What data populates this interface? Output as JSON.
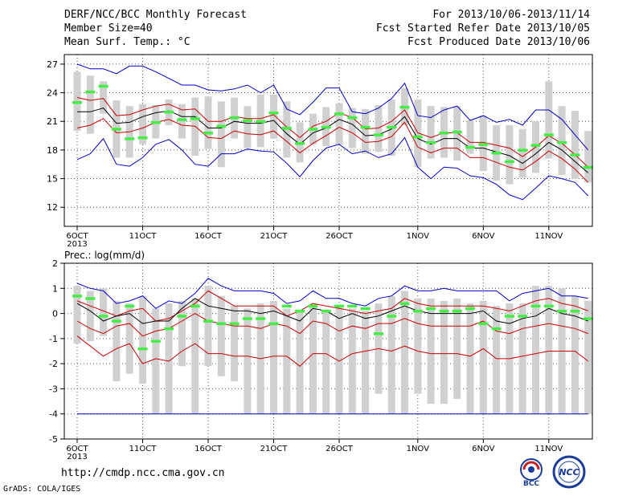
{
  "header": {
    "title": "DERF/NCC/BCC Monthly Forecast",
    "member_size": "Member Size=40",
    "variable": "Mean Surf. Temp.: °C",
    "forecast_period": "For 2013/10/06-2013/11/14",
    "fcst_started": "Fcst Started Refer Date 2013/10/05",
    "fcst_produced": "Fcst Produced Date 2013/10/06"
  },
  "footer": {
    "url": "http://cmdp.ncc.cma.gov.cn",
    "grads_credit": "GrADS: COLA/IGES",
    "logo_bcc": "BCC",
    "logo_ncc": "NCC"
  },
  "colors": {
    "ensemble_max_min": "#0000cc",
    "spread_band": "#cc0000",
    "mean": "#000000",
    "climatology": "#44ee44",
    "box": "#d0d0d0"
  },
  "chart_data": [
    {
      "type": "line",
      "title": "",
      "ylabel": "",
      "ylim": [
        10,
        28
      ],
      "yticks": [
        12,
        15,
        18,
        21,
        24,
        27
      ],
      "x_tick_labels": [
        "6OCT",
        "11OCT",
        "16OCT",
        "21OCT",
        "26OCT",
        "1NOV",
        "6NOV",
        "11NOV"
      ],
      "x_tick_days": [
        1,
        6,
        11,
        16,
        21,
        27,
        32,
        37
      ],
      "year_label": "2013",
      "grid": true,
      "days": [
        1,
        2,
        3,
        4,
        5,
        6,
        7,
        8,
        9,
        10,
        11,
        12,
        13,
        14,
        15,
        16,
        17,
        18,
        19,
        20,
        21,
        22,
        23,
        24,
        25,
        26,
        27,
        28,
        29,
        30,
        31,
        32,
        33,
        34,
        35,
        36,
        37,
        38,
        39,
        40
      ],
      "series": [
        {
          "id": "max",
          "color": "#0000cc",
          "values": [
            27,
            26.5,
            26.5,
            26,
            26.8,
            26.8,
            26.2,
            25.5,
            24.8,
            24.8,
            24.3,
            24.2,
            24.4,
            24.8,
            24,
            24.8,
            22.3,
            21.7,
            23,
            24.5,
            24.5,
            22,
            21.8,
            22.4,
            23.4,
            25,
            21.6,
            21.4,
            22.2,
            22.6,
            21.1,
            21.6,
            20.9,
            21.2,
            20.6,
            22.2,
            22.2,
            21.2,
            19.6,
            18
          ]
        },
        {
          "id": "upper",
          "color": "#cc0000",
          "values": [
            23.5,
            23.2,
            23.4,
            21.6,
            21.7,
            22.2,
            22.6,
            22.8,
            22.2,
            22.3,
            21,
            21,
            21.5,
            21.3,
            21.3,
            21.7,
            20.4,
            19.3,
            20.5,
            21,
            21.9,
            21.4,
            20.2,
            20.3,
            21,
            22.2,
            19.8,
            19.3,
            19.8,
            19.8,
            18.8,
            18.8,
            18.5,
            18.2,
            17.3,
            18.3,
            19.5,
            18.7,
            17.5,
            16.2
          ]
        },
        {
          "id": "mean",
          "color": "#000000",
          "values": [
            22,
            22,
            22.4,
            20.8,
            20.9,
            21.5,
            21.9,
            22.1,
            21.5,
            21.5,
            20.3,
            20.3,
            21,
            20.8,
            20.8,
            21.1,
            19.7,
            18.6,
            19.8,
            20.3,
            21.2,
            20.7,
            19.5,
            19.6,
            20.2,
            21.5,
            19.2,
            18.6,
            19.2,
            19.2,
            18.2,
            18.2,
            17.8,
            17.4,
            16.6,
            17.6,
            18.8,
            18,
            16.8,
            15.6
          ]
        },
        {
          "id": "lower",
          "color": "#cc0000",
          "values": [
            20.3,
            20.6,
            21.3,
            19.8,
            19.9,
            20.3,
            20.9,
            21.2,
            20.6,
            20.5,
            19.3,
            19.2,
            20,
            19.7,
            19.6,
            20,
            18.9,
            17.7,
            18.7,
            19.5,
            20.4,
            19.8,
            18.8,
            18.9,
            19.4,
            20.9,
            18.3,
            17.7,
            18.2,
            18.2,
            17.2,
            17.2,
            16.7,
            16.2,
            15.9,
            16.8,
            17.9,
            17.1,
            16,
            14.6
          ]
        },
        {
          "id": "min",
          "color": "#0000cc",
          "values": [
            17,
            17.6,
            19.2,
            16.5,
            16.3,
            17.2,
            18.6,
            19.1,
            18,
            16.5,
            16.3,
            17.6,
            17.6,
            18.1,
            17.9,
            17.8,
            16.6,
            15.2,
            16.9,
            18.2,
            18.6,
            17.6,
            17.9,
            17.2,
            17.6,
            19.3,
            16.2,
            15,
            16.2,
            16.1,
            15.3,
            15.1,
            14.4,
            13.3,
            12.8,
            14,
            15.3,
            15,
            14.6,
            13.2
          ]
        }
      ],
      "boxes": [
        [
          20,
          26.2
        ],
        [
          19.7,
          25.8
        ],
        [
          21.8,
          25.2
        ],
        [
          17.2,
          23.2
        ],
        [
          17.2,
          22.6
        ],
        [
          18.6,
          22.8
        ],
        [
          19.2,
          22.7
        ],
        [
          20.6,
          23.3
        ],
        [
          19.2,
          22.8
        ],
        [
          17.4,
          23.5
        ],
        [
          18.1,
          23.6
        ],
        [
          16.2,
          23.1
        ],
        [
          19.2,
          23.5
        ],
        [
          18.2,
          22.6
        ],
        [
          18.3,
          23.8
        ],
        [
          19.2,
          23.8
        ],
        [
          17.2,
          23.1
        ],
        [
          16.7,
          20.9
        ],
        [
          18.6,
          21.8
        ],
        [
          18.4,
          22.5
        ],
        [
          18.6,
          22.9
        ],
        [
          18.2,
          22.4
        ],
        [
          17.6,
          22.3
        ],
        [
          17.8,
          22.7
        ],
        [
          17.4,
          23.3
        ],
        [
          20.6,
          24.5
        ],
        [
          16.2,
          23.3
        ],
        [
          17.1,
          22.6
        ],
        [
          17.2,
          22.5
        ],
        [
          16.9,
          22.6
        ],
        [
          17.6,
          21.1
        ],
        [
          15.8,
          21.6
        ],
        [
          14.8,
          20.6
        ],
        [
          14.4,
          20.6
        ],
        [
          15.1,
          20.2
        ],
        [
          15.6,
          21
        ],
        [
          17.1,
          25.2
        ],
        [
          15.4,
          22.6
        ],
        [
          15,
          22.1
        ],
        [
          14.6,
          20
        ]
      ],
      "climatology": [
        23,
        24.1,
        24.7,
        20.2,
        19.2,
        19.3,
        20.9,
        22,
        21.2,
        21.3,
        19.8,
        20.5,
        21.4,
        21.1,
        21,
        21.9,
        20.3,
        18.7,
        20.2,
        20.4,
        21.8,
        21.4,
        20.4,
        19.6,
        20.4,
        22.5,
        19.4,
        18.8,
        19.8,
        19.9,
        18.3,
        18.6,
        17.7,
        16.8,
        18,
        18.5,
        19.6,
        18.8,
        17.5,
        16.2
      ]
    },
    {
      "type": "line",
      "title": "Prec.: log(mm/d)",
      "ylabel": "",
      "ylim": [
        -5,
        2
      ],
      "yticks": [
        -5,
        -4,
        -3,
        -2,
        -1,
        0,
        1,
        2
      ],
      "x_tick_labels": [
        "6OCT",
        "11OCT",
        "16OCT",
        "21OCT",
        "26OCT",
        "1NOV",
        "6NOV",
        "11NOV"
      ],
      "x_tick_days": [
        1,
        6,
        11,
        16,
        21,
        27,
        32,
        37
      ],
      "year_label": "2013",
      "grid": true,
      "days": [
        1,
        2,
        3,
        4,
        5,
        6,
        7,
        8,
        9,
        10,
        11,
        12,
        13,
        14,
        15,
        16,
        17,
        18,
        19,
        20,
        21,
        22,
        23,
        24,
        25,
        26,
        27,
        28,
        29,
        30,
        31,
        32,
        33,
        34,
        35,
        36,
        37,
        38,
        39,
        40
      ],
      "series": [
        {
          "id": "max",
          "color": "#0000cc",
          "values": [
            1.2,
            1,
            0.9,
            0.4,
            0.5,
            0.7,
            0.2,
            0.5,
            0.4,
            0.8,
            1.4,
            1.1,
            0.9,
            0.9,
            0.9,
            0.8,
            0.4,
            0.5,
            0.9,
            0.6,
            0.6,
            0.4,
            0.3,
            0.6,
            0.7,
            1.1,
            0.9,
            0.9,
            1,
            0.9,
            0.9,
            0.9,
            0.9,
            0.5,
            0.8,
            0.9,
            1,
            0.7,
            0.7,
            0.6
          ]
        },
        {
          "id": "upper",
          "color": "#cc0000",
          "values": [
            0.5,
            0.3,
            0.1,
            -0.1,
            0.1,
            0.2,
            -0.3,
            -0.2,
            0.1,
            0.4,
            0.9,
            0.6,
            0.3,
            0.3,
            0.3,
            0.3,
            -0.1,
            0.1,
            0.4,
            0.3,
            0.2,
            0.1,
            0,
            0.1,
            0.2,
            0.6,
            0.4,
            0.3,
            0.3,
            0.3,
            0.3,
            0.3,
            0.2,
            0.1,
            0.3,
            0.5,
            0.6,
            0.4,
            0.3,
            0.1
          ]
        },
        {
          "id": "mean",
          "color": "#000000",
          "values": [
            0.4,
            0.1,
            -0.3,
            -0.1,
            0,
            -0.4,
            -0.3,
            -0.3,
            0.2,
            0.6,
            0.3,
            0.2,
            0.1,
            0.1,
            0,
            0.1,
            -0.1,
            -0.3,
            0.2,
            0.1,
            -0.2,
            0,
            -0.2,
            -0.1,
            0.1,
            0.3,
            0.1,
            0,
            0,
            0,
            0,
            0.1,
            -0.3,
            -0.4,
            -0.2,
            -0.1,
            0.2,
            0,
            -0.1,
            -0.3
          ]
        },
        {
          "id": "lower",
          "color": "#cc0000",
          "values": [
            -0.3,
            -0.6,
            -0.8,
            -0.5,
            -0.4,
            -0.9,
            -0.7,
            -0.6,
            -0.3,
            0,
            -0.3,
            -0.4,
            -0.5,
            -0.5,
            -0.6,
            -0.4,
            -0.5,
            -0.8,
            -0.3,
            -0.4,
            -0.7,
            -0.5,
            -0.6,
            -0.4,
            -0.4,
            -0.2,
            -0.4,
            -0.5,
            -0.5,
            -0.5,
            -0.5,
            -0.3,
            -0.7,
            -0.8,
            -0.6,
            -0.5,
            -0.4,
            -0.5,
            -0.6,
            -0.8
          ]
        },
        {
          "id": "min",
          "color": "#cc0000",
          "values": [
            -0.9,
            -1.3,
            -1.7,
            -1.4,
            -1.2,
            -2,
            -1.8,
            -1.9,
            -1.5,
            -1.2,
            -1.6,
            -1.6,
            -1.7,
            -1.7,
            -1.8,
            -1.7,
            -1.7,
            -2.1,
            -1.6,
            -1.6,
            -1.9,
            -1.6,
            -1.5,
            -1.4,
            -1.5,
            -1.3,
            -1.5,
            -1.6,
            -1.6,
            -1.6,
            -1.7,
            -1.4,
            -1.8,
            -1.8,
            -1.7,
            -1.6,
            -1.5,
            -1.5,
            -1.5,
            -1.9
          ]
        },
        {
          "id": "threshold",
          "color": "#0000cc",
          "values": [
            -4,
            -4,
            -4,
            -4,
            -4,
            -4,
            -4,
            -4,
            -4,
            -4,
            -4,
            -4,
            -4,
            -4,
            -4,
            -4,
            -4,
            -4,
            -4,
            -4,
            -4,
            -4,
            -4,
            -4,
            -4,
            -4,
            -4,
            -4,
            -4,
            -4,
            -4,
            -4,
            -4,
            -4,
            -4,
            -4,
            -4,
            -4,
            -4,
            -4
          ]
        }
      ],
      "boxes": [
        [
          -1.2,
          1.1
        ],
        [
          -1.1,
          0.9
        ],
        [
          -0.9,
          1
        ],
        [
          -2.7,
          0.5
        ],
        [
          -2.4,
          0.4
        ],
        [
          -2.8,
          0.7
        ],
        [
          -4,
          0.2
        ],
        [
          -4,
          0.4
        ],
        [
          -2.1,
          0.5
        ],
        [
          -4,
          0.6
        ],
        [
          -2.1,
          1.1
        ],
        [
          -2.5,
          0.7
        ],
        [
          -2.7,
          0.3
        ],
        [
          -4,
          0.2
        ],
        [
          -4,
          0.4
        ],
        [
          -4,
          0.5
        ],
        [
          -4,
          0.2
        ],
        [
          -4,
          0.1
        ],
        [
          -4,
          0.4
        ],
        [
          -4,
          0.1
        ],
        [
          -4,
          0.3
        ],
        [
          -4,
          0.2
        ],
        [
          -4,
          0.1
        ],
        [
          -3.2,
          0.4
        ],
        [
          -4,
          0.7
        ],
        [
          -4,
          0.9
        ],
        [
          -3.2,
          0.6
        ],
        [
          -3.6,
          0.6
        ],
        [
          -3.6,
          0.5
        ],
        [
          -3.4,
          0.6
        ],
        [
          -4,
          0.4
        ],
        [
          -4,
          0.5
        ],
        [
          -4,
          0.3
        ],
        [
          -4,
          0.4
        ],
        [
          -4,
          0.4
        ],
        [
          -4,
          1.1
        ],
        [
          -4,
          1.1
        ],
        [
          -4,
          1
        ],
        [
          -4,
          0.7
        ],
        [
          -4,
          0.5
        ]
      ],
      "climatology": [
        0.7,
        0.6,
        -0.1,
        -0.3,
        0.3,
        -1.4,
        -1.1,
        -0.6,
        -0.1,
        0.3,
        -0.3,
        -0.4,
        -0.4,
        -0.2,
        -0.2,
        -0.4,
        0.3,
        0.1,
        0.3,
        0.1,
        0.3,
        0.3,
        0.2,
        -0.8,
        -0.1,
        0.4,
        0.1,
        0.2,
        0.1,
        0.1,
        0.2,
        -0.4,
        -0.6,
        -0.1,
        -0.1,
        0.3,
        0.3,
        0.1,
        0.1,
        -0.2
      ]
    }
  ]
}
